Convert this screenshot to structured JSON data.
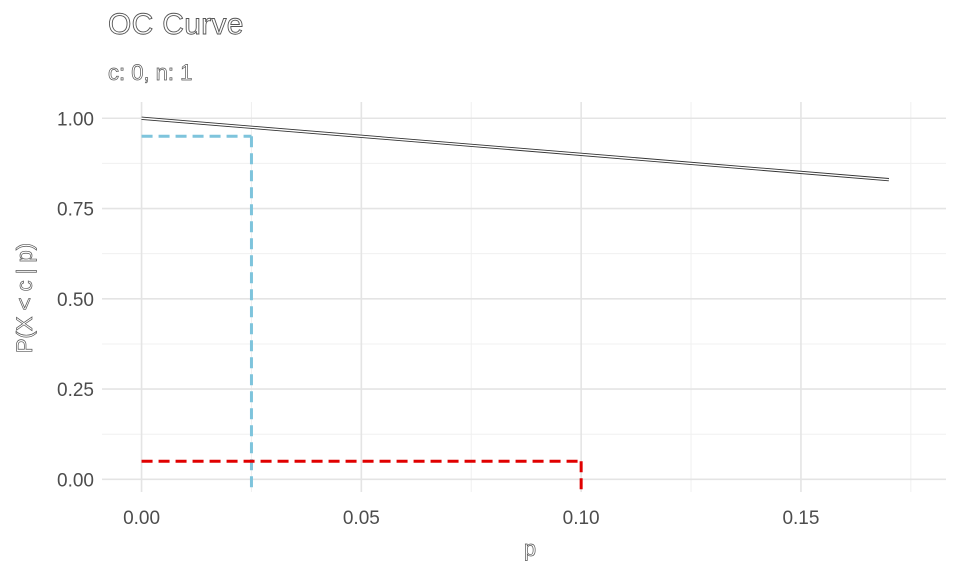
{
  "chart_data": {
    "type": "line",
    "title": "OC Curve",
    "subtitle": "c: 0, n: 1",
    "xlabel": "p",
    "ylabel": "P(X < c | p)",
    "xlim": [
      -0.009,
      0.183
    ],
    "ylim": [
      -0.035,
      1.045
    ],
    "x_ticks": [
      0.0,
      0.05,
      0.1,
      0.15
    ],
    "x_tick_labels": [
      "0.00",
      "0.05",
      "0.10",
      "0.15"
    ],
    "y_ticks": [
      0.0,
      0.25,
      0.5,
      0.75,
      1.0
    ],
    "y_tick_labels": [
      "0.00",
      "0.25",
      "0.50",
      "0.75",
      "1.00"
    ],
    "grid": true,
    "series": [
      {
        "x": [
          0,
          0.17
        ],
        "y": [
          1.0,
          0.83
        ],
        "color": "#333333",
        "style": "outlined"
      }
    ],
    "reference_lines": [
      {
        "color": "#7ec4dc",
        "style": "dashed",
        "x": 0.025,
        "y": 0.95
      },
      {
        "color": "#e00000",
        "style": "dashed",
        "x": 0.1,
        "y": 0.05
      }
    ]
  }
}
